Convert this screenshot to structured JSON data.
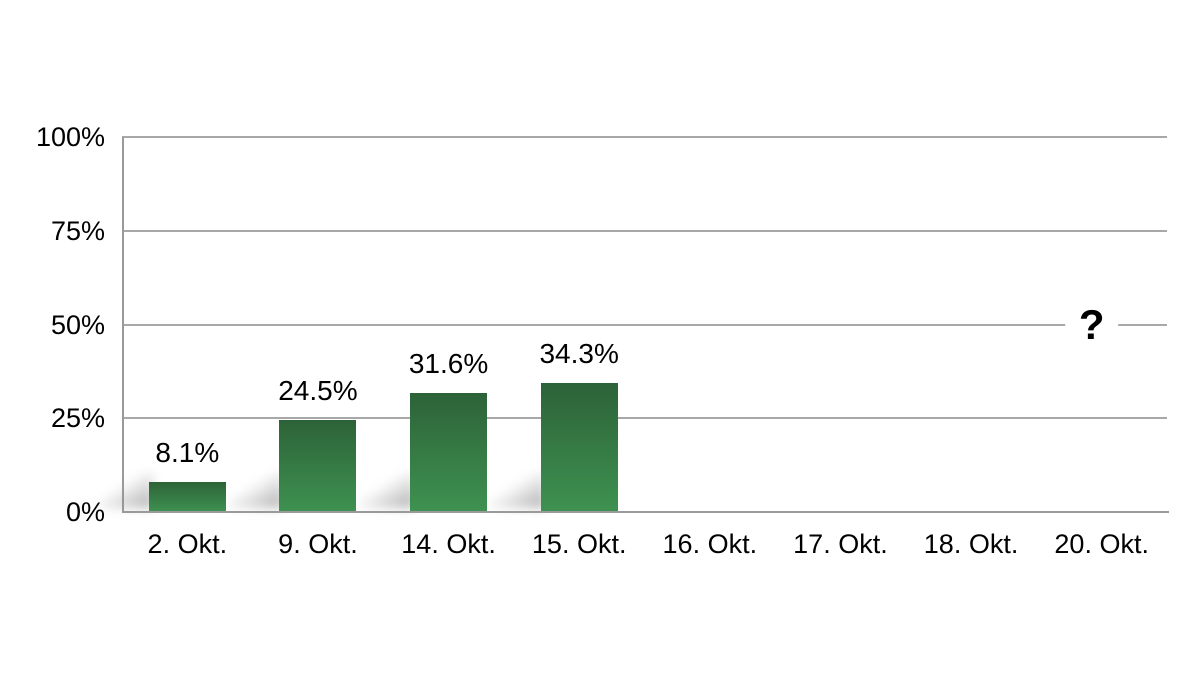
{
  "chart_data": {
    "type": "bar",
    "title": "",
    "xlabel": "",
    "ylabel": "",
    "categories": [
      "2. Okt.",
      "9. Okt.",
      "14. Okt.",
      "15. Okt.",
      "16. Okt.",
      "17. Okt.",
      "18. Okt.",
      "20. Okt."
    ],
    "values": [
      8.1,
      24.5,
      31.6,
      34.3,
      null,
      null,
      null,
      null
    ],
    "value_labels": [
      "8.1%",
      "24.5%",
      "31.6%",
      "34.3%",
      "",
      "",
      "",
      ""
    ],
    "y_ticks": [
      "100%",
      "75%",
      "50%",
      "25%",
      "0%"
    ],
    "y_tick_values": [
      100,
      75,
      50,
      25,
      0
    ],
    "ylim": [
      0,
      100
    ],
    "grid": true,
    "legend": "none",
    "annotation": {
      "text": "?",
      "category": "20. Okt.",
      "y_value": 50
    },
    "colors": {
      "bar_gradient_top": "#2d6238",
      "bar_gradient_bottom": "#3e9251",
      "gridline": "#a8a8a8",
      "axis": "#9a9a9a",
      "label_text": "#000000",
      "background": "#ffffff",
      "shadow": "#8c8c8c"
    }
  }
}
